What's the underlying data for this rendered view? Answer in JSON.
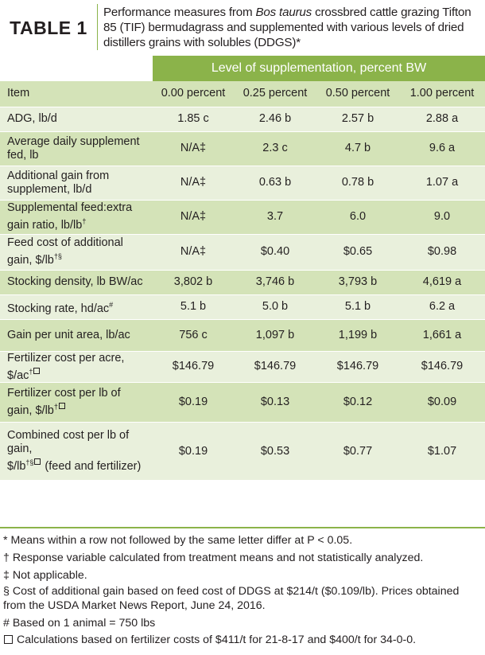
{
  "header": {
    "table_label": "TABLE 1",
    "caption_pre": "Performance measures from ",
    "caption_em": "Bos taurus",
    "caption_post": " crossbred cattle grazing Tifton 85 (TIF) bermudagrass and supplemented with various levels of dried distillers grains with solubles (DDGS)*"
  },
  "supplementation_header": "Level of supplementation, percent BW",
  "columns": [
    "Item",
    "0.00 percent",
    "0.25 percent",
    "0.50 percent",
    "1.00 percent"
  ],
  "rows": [
    {
      "item": "ADG, lb/d",
      "values": [
        "1.85 c",
        "2.46 b",
        "2.57 b",
        "2.88 a"
      ]
    },
    {
      "item_parts": [
        "Average daily supplement",
        "fed, lb"
      ],
      "values": [
        "N/A‡",
        "2.3 c",
        "4.7 b",
        "9.6 a"
      ]
    },
    {
      "item_parts": [
        "Additional gain from",
        "supplement, lb/d"
      ],
      "values": [
        "N/A‡",
        "0.63 b",
        "0.78 b",
        "1.07 a"
      ]
    },
    {
      "item_parts": [
        "Supplemental feed:extra",
        "gain ratio, lb/lb"
      ],
      "item_sup": "†",
      "values": [
        "N/A‡",
        "3.7",
        "6.0",
        "9.0"
      ]
    },
    {
      "item_parts": [
        "Feed cost of additional",
        "gain, $/lb"
      ],
      "item_sup": "†§",
      "values": [
        "N/A‡",
        "$0.40",
        "$0.65",
        "$0.98"
      ]
    },
    {
      "item": "Stocking density, lb BW/ac",
      "values": [
        "3,802 b",
        "3,746 b",
        "3,793 b",
        "4,619 a"
      ]
    },
    {
      "item": "Stocking rate, hd/ac",
      "item_sup": "#",
      "values": [
        "5.1 b",
        "5.0 b",
        "5.1 b",
        "6.2 a"
      ]
    },
    {
      "item": "Gain per unit area, lb/ac",
      "values": [
        "756 c",
        "1,097 b",
        "1,199 b",
        "1,661 a"
      ]
    },
    {
      "item": "Fertilizer cost per acre, $/ac",
      "item_sup": "†",
      "values": [
        "$146.79",
        "$146.79",
        "$146.79",
        "$146.79"
      ]
    },
    {
      "item_parts": [
        "Fertilizer cost per lb of",
        "gain, $/lb"
      ],
      "item_sup": "†",
      "values": [
        "$0.19",
        "$0.13",
        "$0.12",
        "$0.09"
      ]
    },
    {
      "item_parts": [
        "Combined cost per lb of gain,",
        "$/lb"
      ],
      "item_sup": "†§",
      "item_tail": " (feed and fertilizer)",
      "values": [
        "$0.19",
        "$0.53",
        "$0.77",
        "$1.07"
      ]
    }
  ],
  "footnotes": [
    "* Means within a row not followed by the same letter differ at P < 0.05.",
    "† Response variable calculated from treatment means and not statistically analyzed.",
    "‡ Not applicable.",
    "§ Cost of additional gain based on feed cost of DDGS at $214/t ($0.109/lb). Prices obtained from the USDA Market News Report, June 24, 2016.",
    "# Based on 1 animal = 750 lbs",
    "Calculations based on fertilizer costs of $411/t for 21-8-17 and $400/t for 34-0-0."
  ],
  "colors": {
    "accent_green": "#8bb34a",
    "row_dark": "#d4e3b8",
    "row_light": "#e9f0dc"
  }
}
